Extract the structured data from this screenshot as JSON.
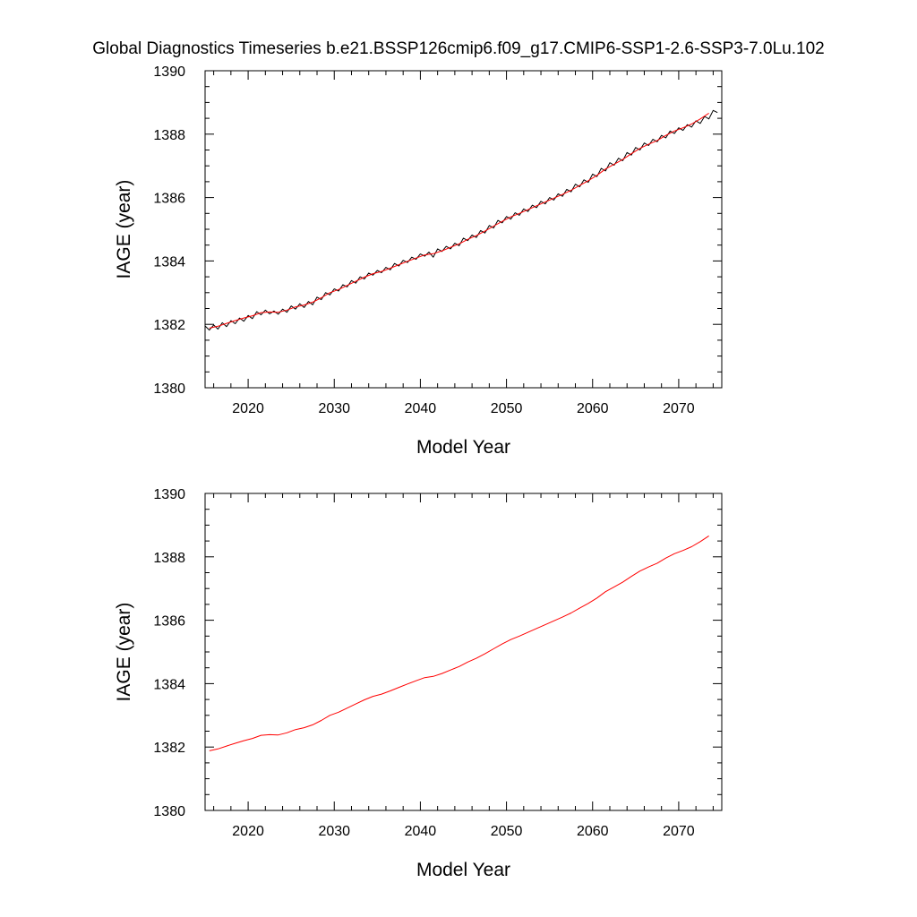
{
  "title": "Global Diagnostics Timeseries b.e21.BSSP126cmip6.f09_g17.CMIP6-SSP1-2.6-SSP3-7.0Lu.102",
  "chart_data": [
    {
      "type": "line",
      "xlabel": "Model Year",
      "ylabel": "IAGE (year)",
      "xlim": [
        2015,
        2075
      ],
      "ylim": [
        1380,
        1390
      ],
      "x_ticks": [
        2020,
        2030,
        2040,
        2050,
        2060,
        2070
      ],
      "y_ticks": [
        1380,
        1382,
        1384,
        1386,
        1388,
        1390
      ],
      "series": [
        {
          "style": "monthly",
          "color": "#000000",
          "x": [
            2015.0,
            2015.5,
            2016.0,
            2016.5,
            2017.0,
            2017.5,
            2018.0,
            2018.5,
            2019.0,
            2019.5,
            2020.0,
            2020.5,
            2021.0,
            2021.5,
            2022.0,
            2022.5,
            2023.0,
            2023.5,
            2024.0,
            2024.5,
            2025.0,
            2025.5,
            2026.0,
            2026.5,
            2027.0,
            2027.5,
            2028.0,
            2028.5,
            2029.0,
            2029.5,
            2030.0,
            2030.5,
            2031.0,
            2031.5,
            2032.0,
            2032.5,
            2033.0,
            2033.5,
            2034.0,
            2034.5,
            2035.0,
            2035.5,
            2036.0,
            2036.5,
            2037.0,
            2037.5,
            2038.0,
            2038.5,
            2039.0,
            2039.5,
            2040.0,
            2040.5,
            2041.0,
            2041.5,
            2042.0,
            2042.5,
            2043.0,
            2043.5,
            2044.0,
            2044.5,
            2045.0,
            2045.5,
            2046.0,
            2046.5,
            2047.0,
            2047.5,
            2048.0,
            2048.5,
            2049.0,
            2049.5,
            2050.0,
            2050.5,
            2051.0,
            2051.5,
            2052.0,
            2052.5,
            2053.0,
            2053.5,
            2054.0,
            2054.5,
            2055.0,
            2055.5,
            2056.0,
            2056.5,
            2057.0,
            2057.5,
            2058.0,
            2058.5,
            2059.0,
            2059.5,
            2060.0,
            2060.5,
            2061.0,
            2061.5,
            2062.0,
            2062.5,
            2063.0,
            2063.5,
            2064.0,
            2064.5,
            2065.0,
            2065.5,
            2066.0,
            2066.5,
            2067.0,
            2067.5,
            2068.0,
            2068.5,
            2069.0,
            2069.5,
            2070.0,
            2070.5,
            2071.0,
            2071.5,
            2072.0,
            2072.5,
            2073.0,
            2073.5,
            2074.0,
            2074.5
          ],
          "y": [
            1381.95,
            1381.82,
            1381.98,
            1381.85,
            1382.05,
            1381.93,
            1382.12,
            1382.02,
            1382.2,
            1382.1,
            1382.28,
            1382.18,
            1382.4,
            1382.3,
            1382.45,
            1382.33,
            1382.42,
            1382.32,
            1382.48,
            1382.38,
            1382.58,
            1382.48,
            1382.65,
            1382.53,
            1382.72,
            1382.62,
            1382.86,
            1382.78,
            1383.0,
            1382.93,
            1383.12,
            1383.05,
            1383.25,
            1383.18,
            1383.38,
            1383.3,
            1383.5,
            1383.43,
            1383.62,
            1383.55,
            1383.7,
            1383.63,
            1383.8,
            1383.72,
            1383.92,
            1383.84,
            1384.02,
            1383.95,
            1384.12,
            1384.05,
            1384.22,
            1384.15,
            1384.28,
            1384.12,
            1384.38,
            1384.3,
            1384.46,
            1384.38,
            1384.56,
            1384.48,
            1384.72,
            1384.64,
            1384.82,
            1384.74,
            1384.96,
            1384.88,
            1385.12,
            1385.04,
            1385.28,
            1385.2,
            1385.4,
            1385.32,
            1385.52,
            1385.44,
            1385.64,
            1385.56,
            1385.76,
            1385.68,
            1385.88,
            1385.8,
            1386.0,
            1385.92,
            1386.12,
            1386.04,
            1386.26,
            1386.18,
            1386.42,
            1386.34,
            1386.56,
            1386.48,
            1386.74,
            1386.66,
            1386.92,
            1386.84,
            1387.1,
            1387.02,
            1387.24,
            1387.16,
            1387.42,
            1387.34,
            1387.58,
            1387.5,
            1387.72,
            1387.64,
            1387.84,
            1387.76,
            1387.96,
            1387.88,
            1388.1,
            1388.02,
            1388.2,
            1388.12,
            1388.3,
            1388.22,
            1388.42,
            1388.34,
            1388.56,
            1388.48,
            1388.75,
            1388.68
          ]
        },
        {
          "style": "annual",
          "color": "#ff0000",
          "x": [
            2015.5,
            2016.5,
            2017.5,
            2018.5,
            2019.5,
            2020.5,
            2021.5,
            2022.5,
            2023.5,
            2024.5,
            2025.5,
            2026.5,
            2027.5,
            2028.5,
            2029.5,
            2030.5,
            2031.5,
            2032.5,
            2033.5,
            2034.5,
            2035.5,
            2036.5,
            2037.5,
            2038.5,
            2039.5,
            2040.5,
            2041.5,
            2042.5,
            2043.5,
            2044.5,
            2045.5,
            2046.5,
            2047.5,
            2048.5,
            2049.5,
            2050.5,
            2051.5,
            2052.5,
            2053.5,
            2054.5,
            2055.5,
            2056.5,
            2057.5,
            2058.5,
            2059.5,
            2060.5,
            2061.5,
            2062.5,
            2063.5,
            2064.5,
            2065.5,
            2066.5,
            2067.5,
            2068.5,
            2069.5,
            2070.5,
            2071.5,
            2072.5,
            2073.5
          ],
          "y": [
            1381.88,
            1381.94,
            1382.03,
            1382.12,
            1382.2,
            1382.27,
            1382.37,
            1382.39,
            1382.38,
            1382.45,
            1382.55,
            1382.61,
            1382.7,
            1382.84,
            1383.0,
            1383.1,
            1383.23,
            1383.36,
            1383.49,
            1383.6,
            1383.67,
            1383.77,
            1383.88,
            1383.99,
            1384.09,
            1384.19,
            1384.23,
            1384.32,
            1384.43,
            1384.54,
            1384.68,
            1384.8,
            1384.94,
            1385.1,
            1385.25,
            1385.39,
            1385.5,
            1385.62,
            1385.74,
            1385.86,
            1385.98,
            1386.1,
            1386.23,
            1386.38,
            1386.53,
            1386.7,
            1386.9,
            1387.05,
            1387.2,
            1387.38,
            1387.55,
            1387.68,
            1387.8,
            1387.96,
            1388.1,
            1388.2,
            1388.32,
            1388.48,
            1388.66
          ]
        }
      ]
    },
    {
      "type": "line",
      "xlabel": "Model Year",
      "ylabel": "IAGE (year)",
      "xlim": [
        2015,
        2075
      ],
      "ylim": [
        1380,
        1390
      ],
      "x_ticks": [
        2020,
        2030,
        2040,
        2050,
        2060,
        2070
      ],
      "y_ticks": [
        1380,
        1382,
        1384,
        1386,
        1388,
        1390
      ],
      "series": [
        {
          "style": "annual",
          "color": "#ff0000",
          "x": [
            2015.5,
            2016.5,
            2017.5,
            2018.5,
            2019.5,
            2020.5,
            2021.5,
            2022.5,
            2023.5,
            2024.5,
            2025.5,
            2026.5,
            2027.5,
            2028.5,
            2029.5,
            2030.5,
            2031.5,
            2032.5,
            2033.5,
            2034.5,
            2035.5,
            2036.5,
            2037.5,
            2038.5,
            2039.5,
            2040.5,
            2041.5,
            2042.5,
            2043.5,
            2044.5,
            2045.5,
            2046.5,
            2047.5,
            2048.5,
            2049.5,
            2050.5,
            2051.5,
            2052.5,
            2053.5,
            2054.5,
            2055.5,
            2056.5,
            2057.5,
            2058.5,
            2059.5,
            2060.5,
            2061.5,
            2062.5,
            2063.5,
            2064.5,
            2065.5,
            2066.5,
            2067.5,
            2068.5,
            2069.5,
            2070.5,
            2071.5,
            2072.5,
            2073.5
          ],
          "y": [
            1381.88,
            1381.94,
            1382.03,
            1382.12,
            1382.2,
            1382.27,
            1382.37,
            1382.39,
            1382.38,
            1382.45,
            1382.55,
            1382.61,
            1382.7,
            1382.84,
            1383.0,
            1383.1,
            1383.23,
            1383.36,
            1383.49,
            1383.6,
            1383.67,
            1383.77,
            1383.88,
            1383.99,
            1384.09,
            1384.19,
            1384.23,
            1384.32,
            1384.43,
            1384.54,
            1384.68,
            1384.8,
            1384.94,
            1385.1,
            1385.25,
            1385.39,
            1385.5,
            1385.62,
            1385.74,
            1385.86,
            1385.98,
            1386.1,
            1386.23,
            1386.38,
            1386.53,
            1386.7,
            1386.9,
            1387.05,
            1387.2,
            1387.38,
            1387.55,
            1387.68,
            1387.8,
            1387.96,
            1388.1,
            1388.2,
            1388.32,
            1388.48,
            1388.66
          ]
        }
      ]
    }
  ]
}
